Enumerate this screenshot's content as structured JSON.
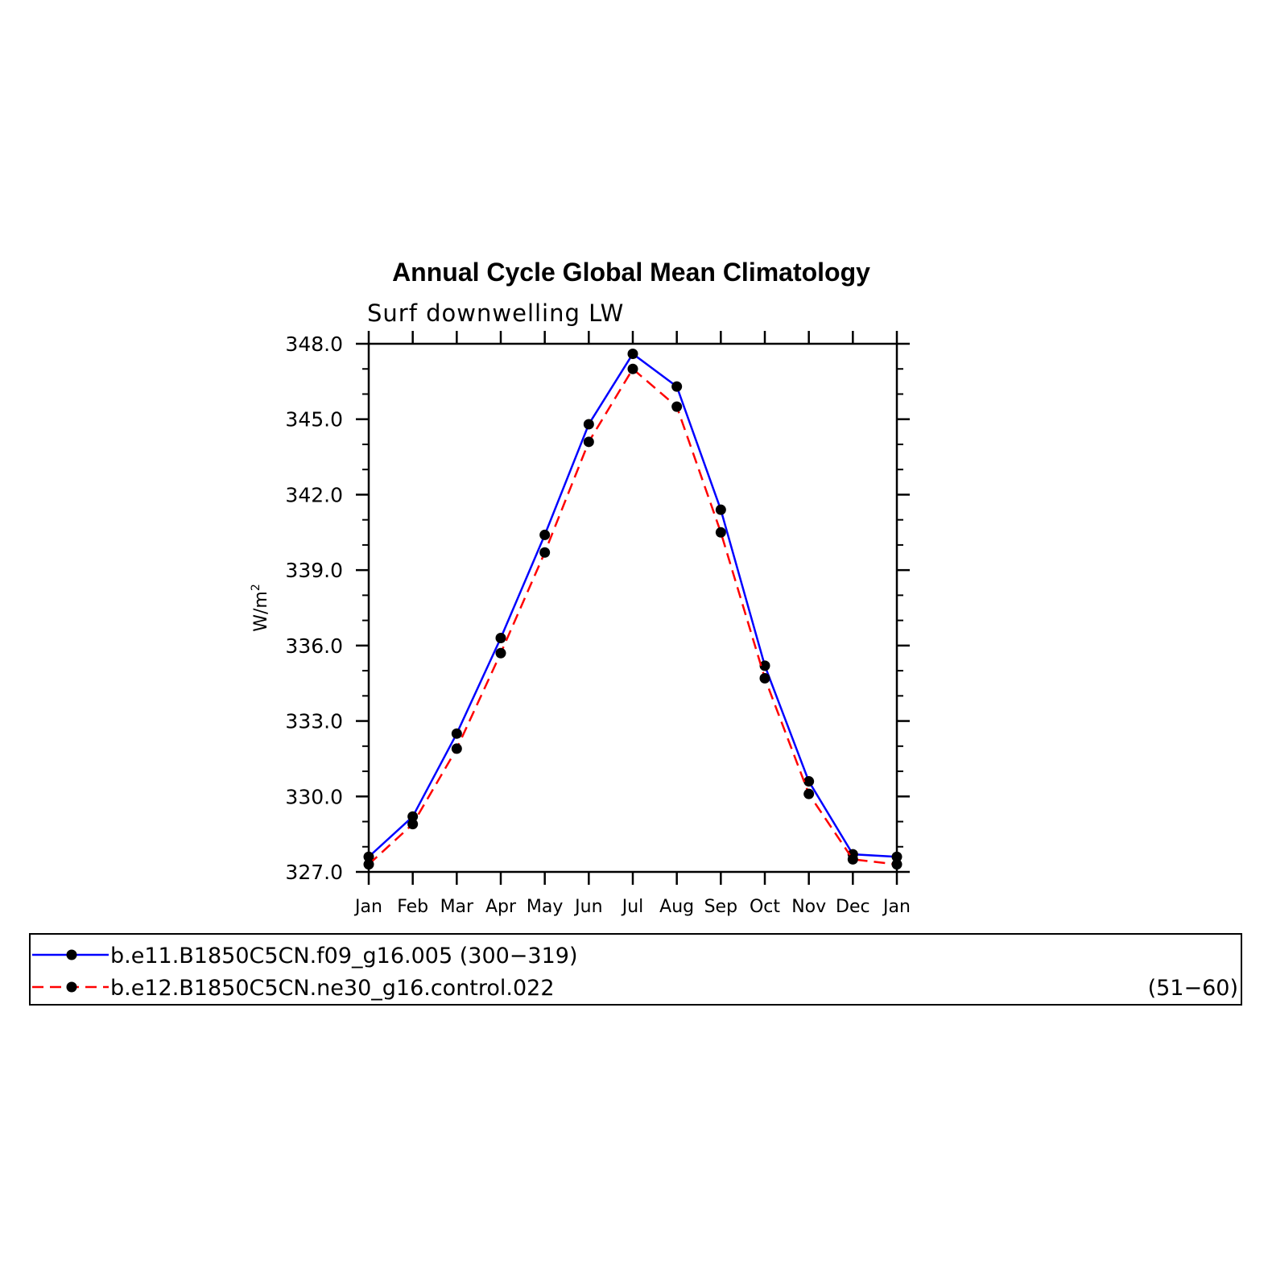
{
  "chart_data": {
    "type": "line",
    "title": "Annual Cycle Global Mean Climatology",
    "subtitle": "Surf downwelling LW",
    "ylabel": "W/m",
    "ylabel_sup": "2",
    "ylim": [
      327.0,
      348.0
    ],
    "yticks": [
      "327.0",
      "330.0",
      "333.0",
      "336.0",
      "339.0",
      "342.0",
      "345.0",
      "348.0"
    ],
    "yticks_values": [
      327,
      330,
      333,
      336,
      339,
      342,
      345,
      348
    ],
    "categories": [
      "Jan",
      "Feb",
      "Mar",
      "Apr",
      "May",
      "Jun",
      "Jul",
      "Aug",
      "Sep",
      "Oct",
      "Nov",
      "Dec",
      "Jan"
    ],
    "series": [
      {
        "name": "b.e11.B1850C5CN.f09_g16.005",
        "years": "(300−319)",
        "color": "#0000ff",
        "dash": "solid",
        "values": [
          327.6,
          329.2,
          332.5,
          336.3,
          340.4,
          344.8,
          347.6,
          346.3,
          341.4,
          335.2,
          330.6,
          327.7,
          327.6
        ]
      },
      {
        "name": "b.e12.B1850C5CN.ne30_g16.control.022",
        "years": "(51−60)",
        "color": "#ff0000",
        "dash": "dashed",
        "values": [
          327.3,
          328.9,
          331.9,
          335.7,
          339.7,
          344.1,
          347.0,
          345.5,
          340.5,
          334.7,
          330.1,
          327.5,
          327.3
        ]
      }
    ]
  }
}
